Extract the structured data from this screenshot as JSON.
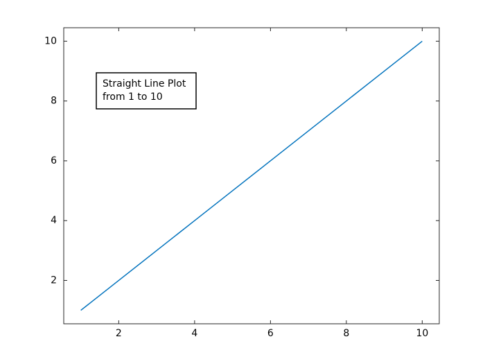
{
  "chart_data": {
    "type": "line",
    "x": [
      1,
      2,
      3,
      4,
      5,
      6,
      7,
      8,
      9,
      10
    ],
    "series": [
      {
        "color": "#0072bd",
        "values": [
          1,
          2,
          3,
          4,
          5,
          6,
          7,
          8,
          9,
          10
        ]
      }
    ],
    "xlim": [
      0.55,
      10.45
    ],
    "ylim": [
      0.55,
      10.45
    ],
    "xticks": [
      2,
      4,
      6,
      8,
      10
    ],
    "yticks": [
      2,
      4,
      6,
      8,
      10
    ],
    "annotation": [
      "Straight Line Plot",
      "from 1 to 10"
    ]
  }
}
